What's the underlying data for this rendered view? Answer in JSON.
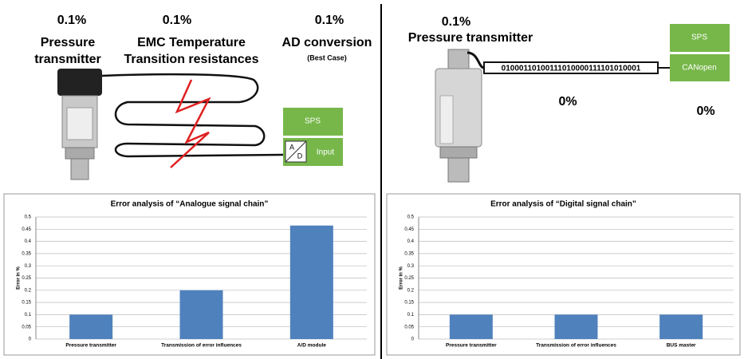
{
  "diagram": {
    "left": {
      "items": [
        {
          "error": "0.1%",
          "label": [
            "Pressure",
            "transmitter"
          ]
        },
        {
          "error": "0.1%",
          "label": [
            "EMC Temperature",
            "Transition resistances"
          ]
        },
        {
          "error": "0.1%",
          "label": [
            "AD conversion"
          ],
          "note": "(Best Case)"
        }
      ],
      "sps": "SPS",
      "input": "Input",
      "ad": [
        "A",
        "D"
      ]
    },
    "right": {
      "error": "0.1%",
      "label": "Pressure transmitter",
      "bits": "01000110100111010000111101010001",
      "sps": "SPS",
      "canopen": "CANopen",
      "errors": [
        "0%",
        "0%"
      ]
    }
  },
  "chart_data": [
    {
      "type": "bar",
      "title": "Error analysis of “Analogue signal chain”",
      "y_label": "Error in %",
      "categories": [
        "Pressure transmitter",
        "Transmission of error influences",
        "A/D module"
      ],
      "values": [
        0.1,
        0.2,
        0.465
      ],
      "color": "#4f81bd",
      "ylim": [
        0,
        0.5
      ],
      "yticks": [
        0,
        0.05,
        0.1,
        0.15,
        0.2,
        0.25,
        0.3,
        0.35,
        0.4,
        0.45,
        0.5
      ],
      "grid": true
    },
    {
      "type": "bar",
      "title": "Error analysis of “Digital signal chain”",
      "y_label": "Error in %",
      "categories": [
        "Pressure transmitter",
        "Transmission of error influences",
        "BUS master"
      ],
      "values": [
        0.1,
        0.1,
        0.1
      ],
      "color": "#4f81bd",
      "ylim": [
        0,
        0.5
      ],
      "yticks": [
        0,
        0.05,
        0.1,
        0.15,
        0.2,
        0.25,
        0.3,
        0.35,
        0.4,
        0.45,
        0.5
      ],
      "grid": true
    }
  ]
}
